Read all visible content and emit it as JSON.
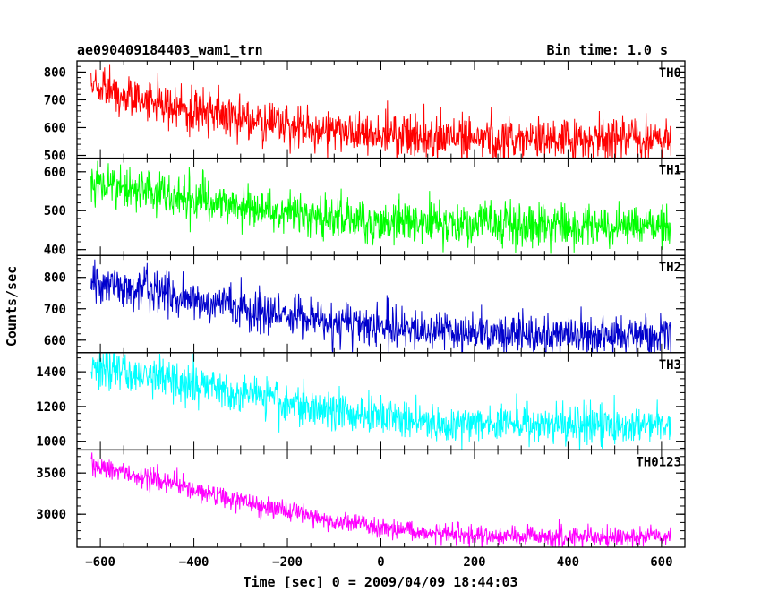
{
  "chart_data": {
    "type": "line",
    "title_left": "ae090409184403_wam1_trn",
    "title_right": "Bin time: 1.0 s",
    "xlabel": "Time [sec] 0 = 2009/04/09 18:44:03",
    "ylabel": "Counts/sec",
    "xlim": [
      -650,
      650
    ],
    "xticks": [
      -600,
      -400,
      -200,
      0,
      200,
      400,
      600
    ],
    "x_range": [
      -620,
      620
    ],
    "bin_time": 1.0,
    "panels": [
      {
        "name": "TH0",
        "color": "#ff0000",
        "ylim": [
          490,
          840
        ],
        "yticks": [
          500,
          600,
          700,
          800
        ],
        "trend": [
          [
            -620,
            760
          ],
          [
            -500,
            690
          ],
          [
            -300,
            630
          ],
          [
            -100,
            590
          ],
          [
            100,
            565
          ],
          [
            300,
            560
          ],
          [
            620,
            560
          ]
        ],
        "noise": 40
      },
      {
        "name": "TH1",
        "color": "#00ff00",
        "ylim": [
          385,
          635
        ],
        "yticks": [
          400,
          500,
          600
        ],
        "trend": [
          [
            -620,
            570
          ],
          [
            -500,
            550
          ],
          [
            -300,
            505
          ],
          [
            -100,
            480
          ],
          [
            100,
            465
          ],
          [
            300,
            460
          ],
          [
            620,
            460
          ]
        ],
        "noise": 28
      },
      {
        "name": "TH2",
        "color": "#0000cc",
        "ylim": [
          560,
          870
        ],
        "yticks": [
          600,
          700,
          800
        ],
        "trend": [
          [
            -620,
            790
          ],
          [
            -500,
            760
          ],
          [
            -300,
            700
          ],
          [
            -100,
            660
          ],
          [
            100,
            630
          ],
          [
            300,
            615
          ],
          [
            620,
            615
          ]
        ],
        "noise": 32
      },
      {
        "name": "TH3",
        "color": "#00ffff",
        "ylim": [
          950,
          1510
        ],
        "yticks": [
          1000,
          1200,
          1400
        ],
        "trend": [
          [
            -620,
            1430
          ],
          [
            -500,
            1380
          ],
          [
            -300,
            1270
          ],
          [
            -100,
            1180
          ],
          [
            100,
            1110
          ],
          [
            300,
            1095
          ],
          [
            620,
            1095
          ]
        ],
        "noise": 55
      },
      {
        "name": "TH0123",
        "color": "#ff00ff",
        "ylim": [
          2600,
          3780
        ],
        "yticks": [
          3000,
          3500
        ],
        "trend": [
          [
            -620,
            3600
          ],
          [
            -500,
            3450
          ],
          [
            -300,
            3150
          ],
          [
            -100,
            2920
          ],
          [
            100,
            2780
          ],
          [
            300,
            2730
          ],
          [
            620,
            2720
          ]
        ],
        "noise": 65
      }
    ]
  }
}
